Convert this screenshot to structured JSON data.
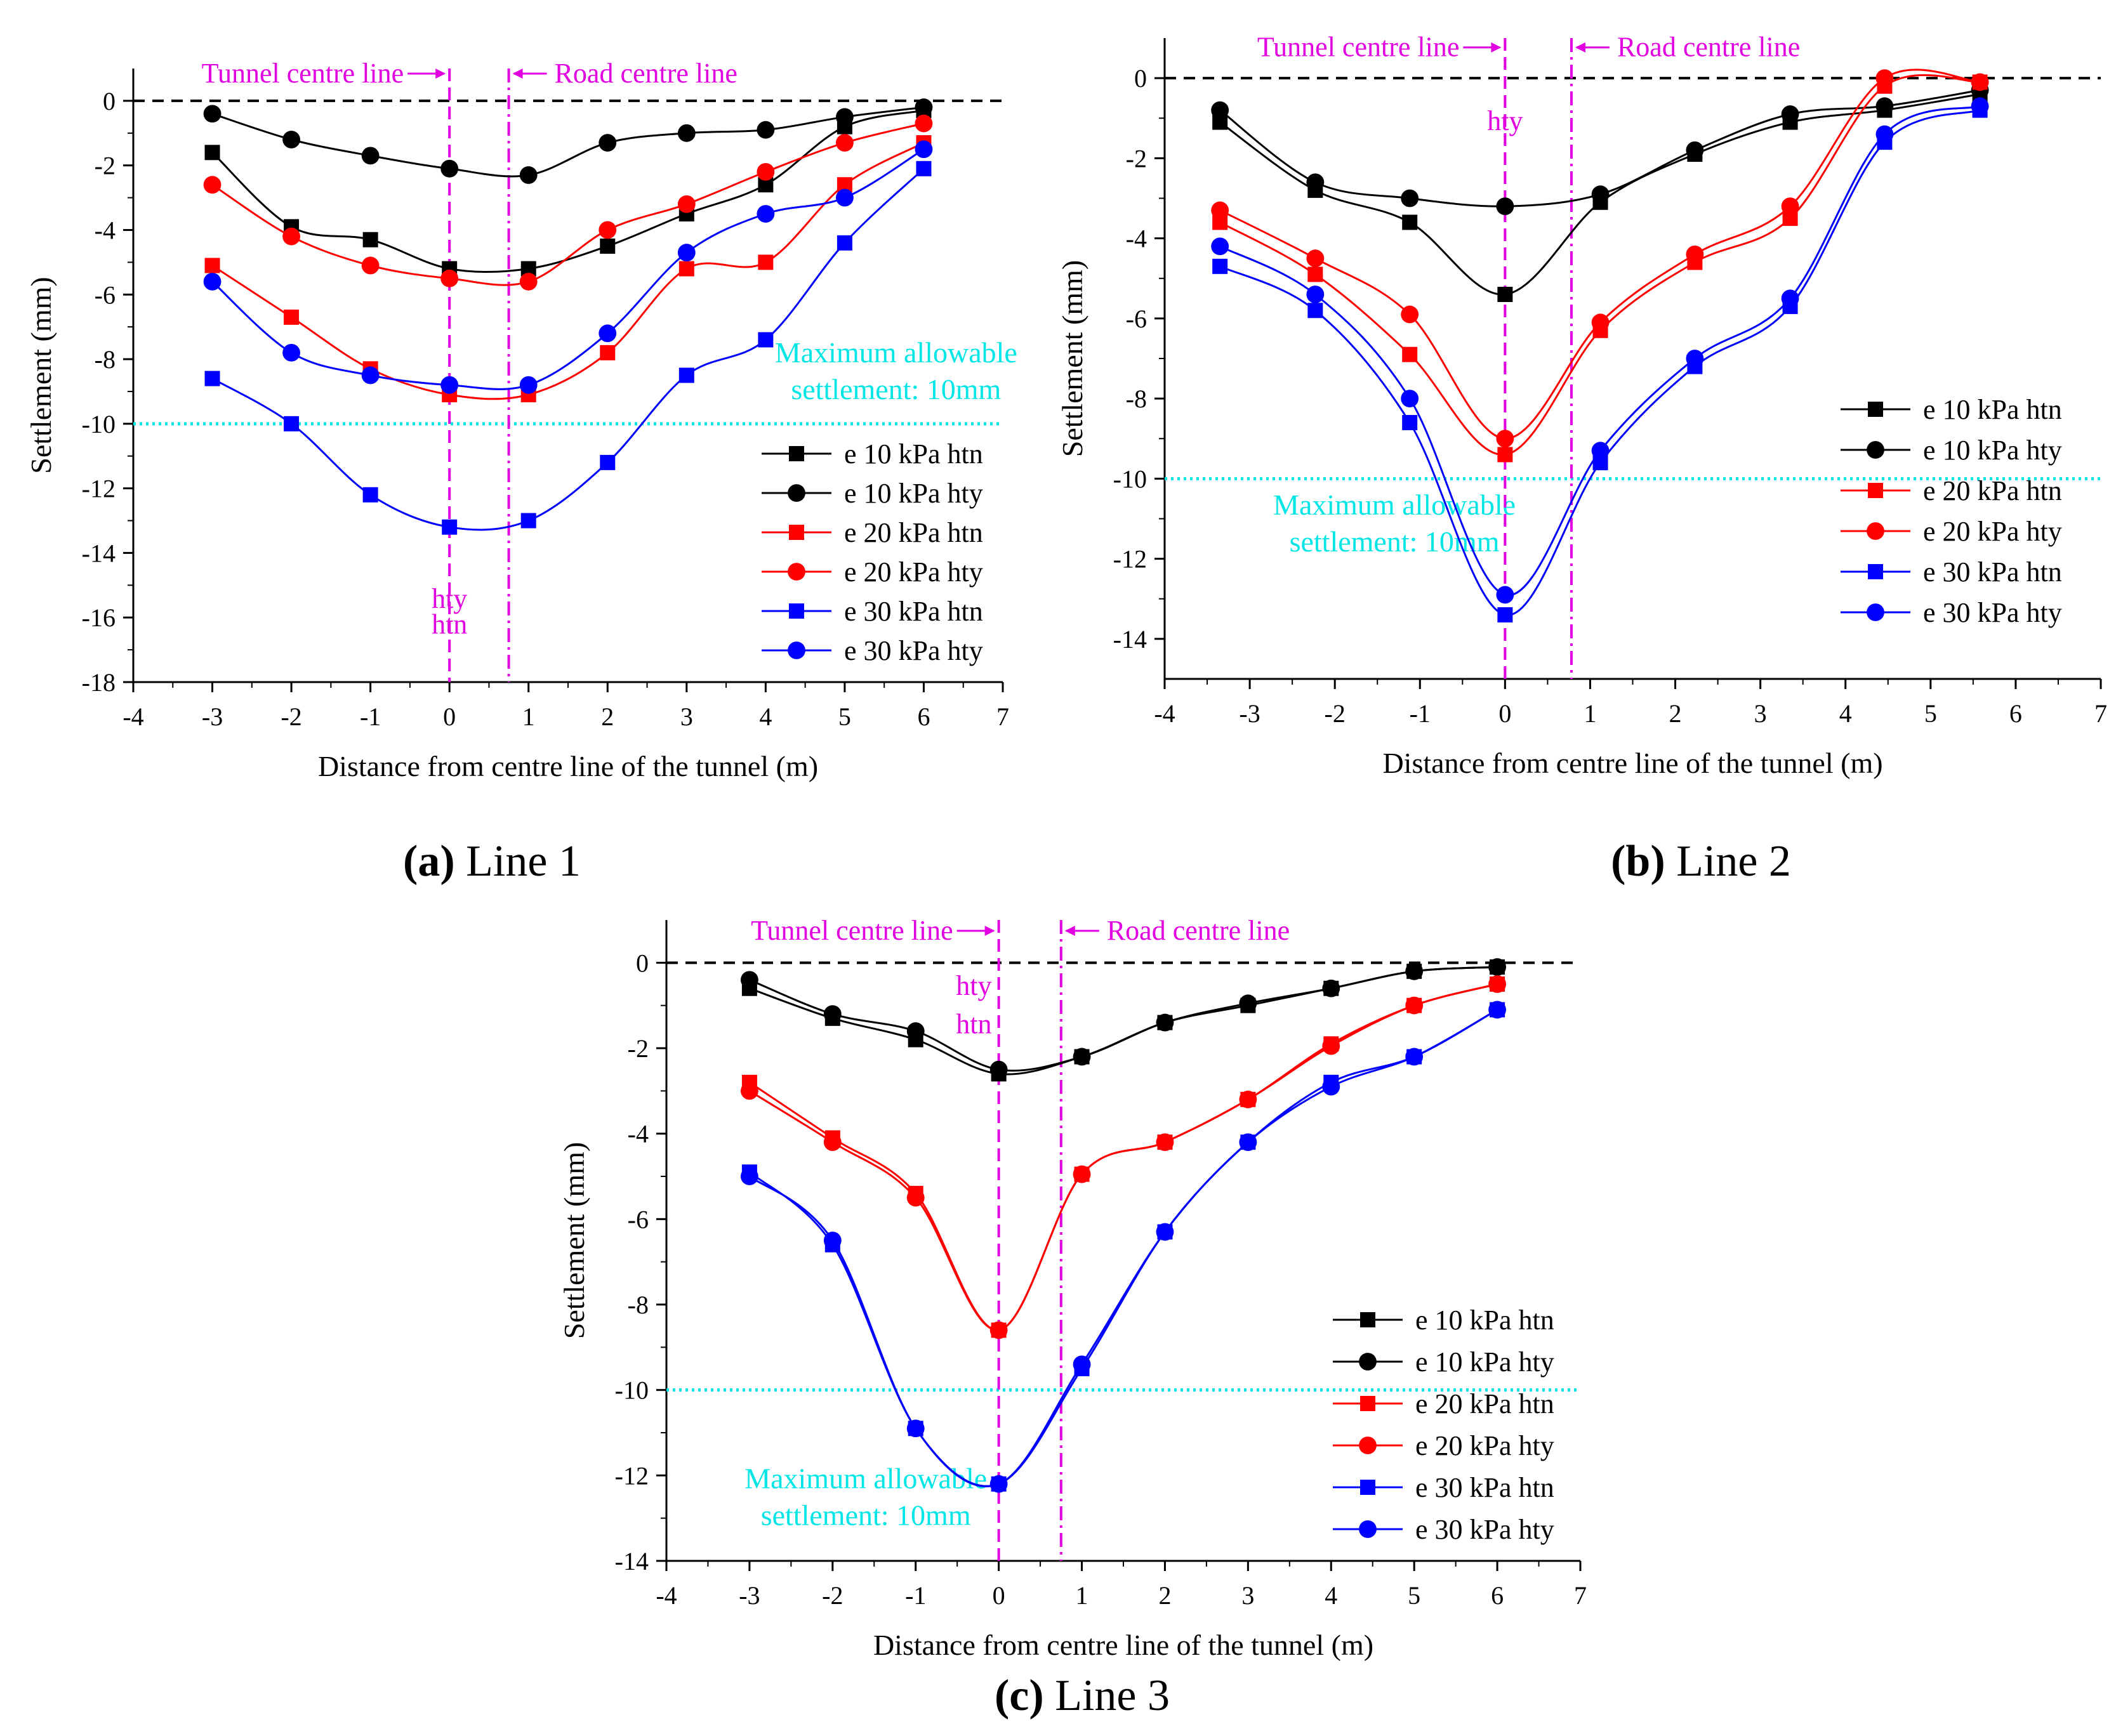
{
  "colors": {
    "e10": "#000000",
    "e20": "#ff0000",
    "e30": "#0000ff",
    "annotation": "#e000e0",
    "limit": "#00e5e5",
    "zero_line": "#000000"
  },
  "legend_entries": [
    {
      "label": "e 10 kPa htn",
      "color": "#000000",
      "marker": "square"
    },
    {
      "label": "e 10 kPa hty",
      "color": "#000000",
      "marker": "circle"
    },
    {
      "label": "e 20 kPa htn",
      "color": "#ff0000",
      "marker": "square"
    },
    {
      "label": "e 20 kPa hty",
      "color": "#ff0000",
      "marker": "circle"
    },
    {
      "label": "e 30 kPa htn",
      "color": "#0000ff",
      "marker": "square"
    },
    {
      "label": "e 30 kPa hty",
      "color": "#0000ff",
      "marker": "circle"
    }
  ],
  "chart_data": [
    {
      "type": "line",
      "caption_letter": "(a)",
      "caption_text": " Line 1",
      "xlabel": "Distance from centre line of the tunnel (m)",
      "ylabel": "Settlement  (mm)",
      "xlim": [
        -4,
        7
      ],
      "ylim": [
        -18,
        1
      ],
      "xticks": [
        -4,
        -3,
        -2,
        -1,
        0,
        1,
        2,
        3,
        4,
        5,
        6,
        7
      ],
      "yticks": [
        0,
        -2,
        -4,
        -6,
        -8,
        -10,
        -12,
        -14,
        -16,
        -18
      ],
      "tunnel_centre_x": 0,
      "road_centre_x": 0.75,
      "allowable_settlement": -10,
      "annotations": {
        "tunnel_label": "Tunnel centre line",
        "road_label": "Road centre line",
        "limit_label_1": "Maximum allowable",
        "limit_label_2": "settlement: 10mm",
        "hty_label": "hty",
        "htn_label": "htn"
      },
      "series": [
        {
          "name": "e 10 kPa htn",
          "x": [
            -3,
            -2,
            -1,
            0,
            1,
            2,
            3,
            4,
            5,
            6
          ],
          "values": [
            -1.6,
            -3.9,
            -4.3,
            -5.2,
            -5.2,
            -4.5,
            -3.5,
            -2.6,
            -0.8,
            -0.3
          ]
        },
        {
          "name": "e 10 kPa hty",
          "x": [
            -3,
            -2,
            -1,
            0,
            1,
            2,
            3,
            4,
            5,
            6
          ],
          "values": [
            -0.4,
            -1.2,
            -1.7,
            -2.1,
            -2.3,
            -1.3,
            -1.0,
            -0.9,
            -0.5,
            -0.2
          ]
        },
        {
          "name": "e 20 kPa htn",
          "x": [
            -3,
            -2,
            -1,
            0,
            1,
            2,
            3,
            4,
            5,
            6
          ],
          "values": [
            -5.1,
            -6.7,
            -8.3,
            -9.1,
            -9.1,
            -7.8,
            -5.2,
            -5.0,
            -2.6,
            -1.3
          ]
        },
        {
          "name": "e 20 kPa hty",
          "x": [
            -3,
            -2,
            -1,
            0,
            1,
            2,
            3,
            4,
            5,
            6
          ],
          "values": [
            -2.6,
            -4.2,
            -5.1,
            -5.5,
            -5.6,
            -4.0,
            -3.2,
            -2.2,
            -1.3,
            -0.7
          ]
        },
        {
          "name": "e 30 kPa htn",
          "x": [
            -3,
            -2,
            -1,
            0,
            1,
            2,
            3,
            4,
            5,
            6
          ],
          "values": [
            -8.6,
            -10.0,
            -12.2,
            -13.2,
            -13.0,
            -11.2,
            -8.5,
            -7.4,
            -4.4,
            -2.1
          ]
        },
        {
          "name": "e 30 kPa hty",
          "x": [
            -3,
            -2,
            -1,
            0,
            1,
            2,
            3,
            4,
            5,
            6
          ],
          "values": [
            -5.6,
            -7.8,
            -8.5,
            -8.8,
            -8.8,
            -7.2,
            -4.7,
            -3.5,
            -3.0,
            -1.5
          ]
        }
      ]
    },
    {
      "type": "line",
      "caption_letter": "(b)",
      "caption_text": " Line 2",
      "xlabel": "Distance from centre line of the tunnel (m)",
      "ylabel": "Settlement  (mm)",
      "xlim": [
        -4,
        7
      ],
      "ylim": [
        -15,
        1
      ],
      "xticks": [
        -4,
        -3,
        -2,
        -1,
        0,
        1,
        2,
        3,
        4,
        5,
        6,
        7
      ],
      "yticks": [
        0,
        -2,
        -4,
        -6,
        -8,
        -10,
        -12,
        -14
      ],
      "tunnel_centre_x": 0,
      "road_centre_x": 0.78,
      "allowable_settlement": -10,
      "annotations": {
        "tunnel_label": "Tunnel centre line",
        "road_label": "Road centre line",
        "limit_label_1": "Maximum allowable",
        "limit_label_2": "settlement: 10mm",
        "hty_label": "hty"
      },
      "series": [
        {
          "name": "e 10 kPa htn",
          "x": [
            -3.35,
            -2.23,
            -1.12,
            0,
            1.12,
            2.23,
            3.35,
            4.46,
            5.58
          ],
          "values": [
            -1.1,
            -2.8,
            -3.6,
            -5.4,
            -3.1,
            -1.9,
            -1.1,
            -0.8,
            -0.4
          ]
        },
        {
          "name": "e 10 kPa hty",
          "x": [
            -3.35,
            -2.23,
            -1.12,
            0,
            1.12,
            2.23,
            3.35,
            4.46,
            5.58
          ],
          "values": [
            -0.8,
            -2.6,
            -3.0,
            -3.2,
            -2.9,
            -1.8,
            -0.9,
            -0.7,
            -0.3
          ]
        },
        {
          "name": "e 20 kPa htn",
          "x": [
            -3.35,
            -2.23,
            -1.12,
            0,
            1.12,
            2.23,
            3.35,
            4.46,
            5.58
          ],
          "values": [
            -3.6,
            -4.9,
            -6.9,
            -9.4,
            -6.3,
            -4.6,
            -3.5,
            -0.2,
            -0.1
          ]
        },
        {
          "name": "e 20 kPa hty",
          "x": [
            -3.35,
            -2.23,
            -1.12,
            0,
            1.12,
            2.23,
            3.35,
            4.46,
            5.58
          ],
          "values": [
            -3.3,
            -4.5,
            -5.9,
            -9.0,
            -6.1,
            -4.4,
            -3.2,
            0.0,
            -0.1
          ]
        },
        {
          "name": "e 30 kPa htn",
          "x": [
            -3.35,
            -2.23,
            -1.12,
            0,
            1.12,
            2.23,
            3.35,
            4.46,
            5.58
          ],
          "values": [
            -4.7,
            -5.8,
            -8.6,
            -13.4,
            -9.6,
            -7.2,
            -5.7,
            -1.6,
            -0.8
          ]
        },
        {
          "name": "e 30 kPa hty",
          "x": [
            -3.35,
            -2.23,
            -1.12,
            0,
            1.12,
            2.23,
            3.35,
            4.46,
            5.58
          ],
          "values": [
            -4.2,
            -5.4,
            -8.0,
            -12.9,
            -9.3,
            -7.0,
            -5.5,
            -1.4,
            -0.7
          ]
        }
      ]
    },
    {
      "type": "line",
      "caption_letter": "(c)",
      "caption_text": " Line 3",
      "xlabel": "Distance from centre line of the tunnel (m)",
      "ylabel": "Settlement  (mm)",
      "xlim": [
        -4,
        7
      ],
      "ylim": [
        -14,
        1
      ],
      "xticks": [
        -4,
        -3,
        -2,
        -1,
        0,
        1,
        2,
        3,
        4,
        5,
        6,
        7
      ],
      "yticks": [
        0,
        -2,
        -4,
        -6,
        -8,
        -10,
        -12,
        -14
      ],
      "tunnel_centre_x": 0,
      "road_centre_x": 0.75,
      "allowable_settlement": -10,
      "annotations": {
        "tunnel_label": "Tunnel centre line",
        "road_label": "Road centre line",
        "limit_label_1": "Maximum allowable",
        "limit_label_2": "settlement: 10mm",
        "hty_label": "hty",
        "htn_label": "htn"
      },
      "series": [
        {
          "name": "e 10 kPa htn",
          "x": [
            -3,
            -2,
            -1,
            0,
            1,
            2,
            3,
            4,
            5,
            6
          ],
          "values": [
            -0.6,
            -1.3,
            -1.8,
            -2.6,
            -2.2,
            -1.4,
            -1.0,
            -0.6,
            -0.2,
            -0.1
          ]
        },
        {
          "name": "e 10 kPa hty",
          "x": [
            -3,
            -2,
            -1,
            0,
            1,
            2,
            3,
            4,
            5,
            6
          ],
          "values": [
            -0.4,
            -1.2,
            -1.6,
            -2.5,
            -2.2,
            -1.4,
            -0.95,
            -0.6,
            -0.2,
            -0.1
          ]
        },
        {
          "name": "e 20 kPa htn",
          "x": [
            -3,
            -2,
            -1,
            0,
            1,
            2,
            3,
            4,
            5,
            6
          ],
          "values": [
            -2.8,
            -4.1,
            -5.4,
            -8.6,
            -4.95,
            -4.2,
            -3.2,
            -1.9,
            -1.0,
            -0.5
          ]
        },
        {
          "name": "e 20 kPa hty",
          "x": [
            -3,
            -2,
            -1,
            0,
            1,
            2,
            3,
            4,
            5,
            6
          ],
          "values": [
            -3.0,
            -4.2,
            -5.5,
            -8.6,
            -4.95,
            -4.2,
            -3.2,
            -1.95,
            -1.0,
            -0.5
          ]
        },
        {
          "name": "e 30 kPa htn",
          "x": [
            -3,
            -2,
            -1,
            0,
            1,
            2,
            3,
            4,
            5,
            6
          ],
          "values": [
            -4.9,
            -6.6,
            -10.9,
            -12.2,
            -9.5,
            -6.3,
            -4.2,
            -2.8,
            -2.2,
            -1.1
          ]
        },
        {
          "name": "e 30 kPa hty",
          "x": [
            -3,
            -2,
            -1,
            0,
            1,
            2,
            3,
            4,
            5,
            6
          ],
          "values": [
            -5.0,
            -6.5,
            -10.9,
            -12.2,
            -9.4,
            -6.3,
            -4.2,
            -2.9,
            -2.2,
            -1.1
          ]
        }
      ]
    }
  ]
}
